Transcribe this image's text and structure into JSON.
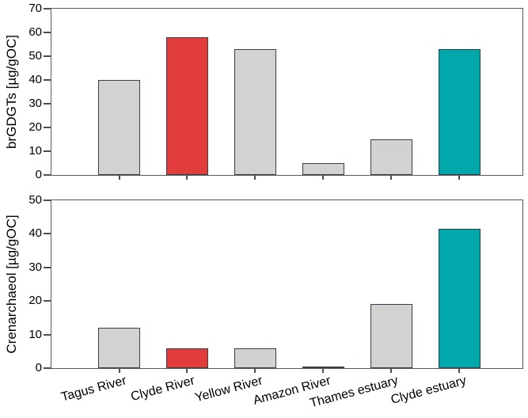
{
  "page": {
    "background": "#ffffff"
  },
  "colors": {
    "bar_fill_default_gray": "#d2d2d2",
    "bar_fill_highlight_red": "#e23d3d",
    "bar_fill_highlight_teal": "#00a8ac",
    "bar_border": "#34414a",
    "axis_frame": "#5a5a5a",
    "text": "#000000"
  },
  "chart_data": [
    {
      "type": "bar",
      "title": "",
      "ylabel": "brGDGTs [µg/gOC]",
      "xlabel": "",
      "ylim": [
        0,
        70
      ],
      "yticks": [
        0,
        10,
        20,
        30,
        40,
        50,
        60,
        70
      ],
      "categories": [
        "Tagus River",
        "Clyde River",
        "Yellow River",
        "Amazon River",
        "Thames estuary",
        "Clyde estuary"
      ],
      "values": [
        40,
        58,
        53,
        5,
        15,
        53
      ],
      "bar_color_keys": [
        "gray",
        "red",
        "gray",
        "gray",
        "gray",
        "teal"
      ],
      "show_x_tick_labels": false,
      "grid": false,
      "legend": "none"
    },
    {
      "type": "bar",
      "title": "",
      "ylabel": "Crenarchaeol [µg/gOC]",
      "xlabel": "",
      "ylim": [
        0,
        50
      ],
      "yticks": [
        0,
        10,
        20,
        30,
        40,
        50
      ],
      "categories": [
        "Tagus River",
        "Clyde River",
        "Yellow River",
        "Amazon River",
        "Thames estuary",
        "Clyde estuary"
      ],
      "values": [
        12,
        6,
        6,
        0.3,
        19,
        41.5
      ],
      "bar_color_keys": [
        "gray",
        "red",
        "gray",
        "gray",
        "gray",
        "teal"
      ],
      "show_x_tick_labels": true,
      "grid": false,
      "legend": "none"
    }
  ]
}
